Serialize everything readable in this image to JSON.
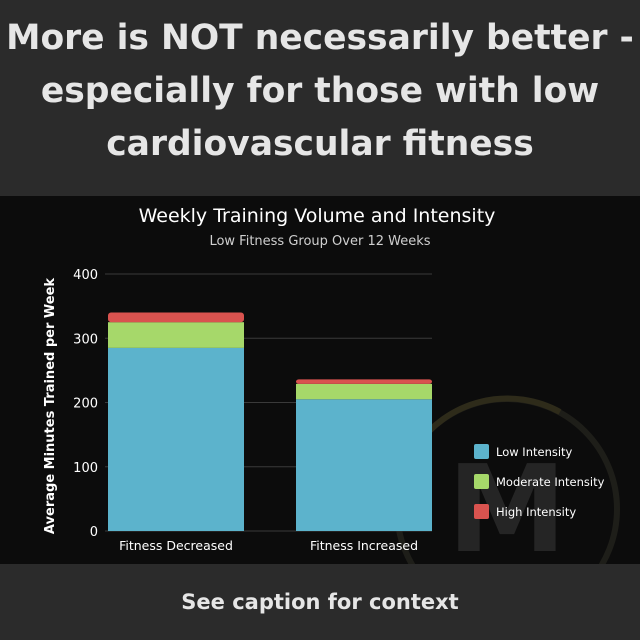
{
  "headline": {
    "line1": "More is NOT necessarily better -",
    "line2": "especially for those with low",
    "line3": "cardiovascular fitness"
  },
  "footer": {
    "text": "See caption for context"
  },
  "watermark": {
    "letter": "M"
  },
  "colors": {
    "low": "#5cb3cc",
    "moderate": "#a6d86a",
    "high": "#d9534f",
    "background": "#0c0c0c",
    "text": "#ffffff"
  },
  "chart_data": {
    "type": "bar",
    "stacked": true,
    "title": "Weekly Training Volume and Intensity",
    "subtitle": "Low Fitness Group Over 12 Weeks",
    "xlabel": "",
    "ylabel": "Average Minutes Trained per Week",
    "ylim": [
      0,
      400
    ],
    "yticks": [
      0,
      100,
      200,
      300,
      400
    ],
    "grid": true,
    "legend_position": "right",
    "categories": [
      "Fitness Decreased",
      "Fitness Increased"
    ],
    "series": [
      {
        "name": "Low Intensity",
        "color": "#5cb3cc",
        "values": [
          285,
          205
        ]
      },
      {
        "name": "Moderate Intensity",
        "color": "#a6d86a",
        "values": [
          40,
          24
        ]
      },
      {
        "name": "High Intensity",
        "color": "#d9534f",
        "values": [
          15,
          7
        ]
      }
    ]
  }
}
